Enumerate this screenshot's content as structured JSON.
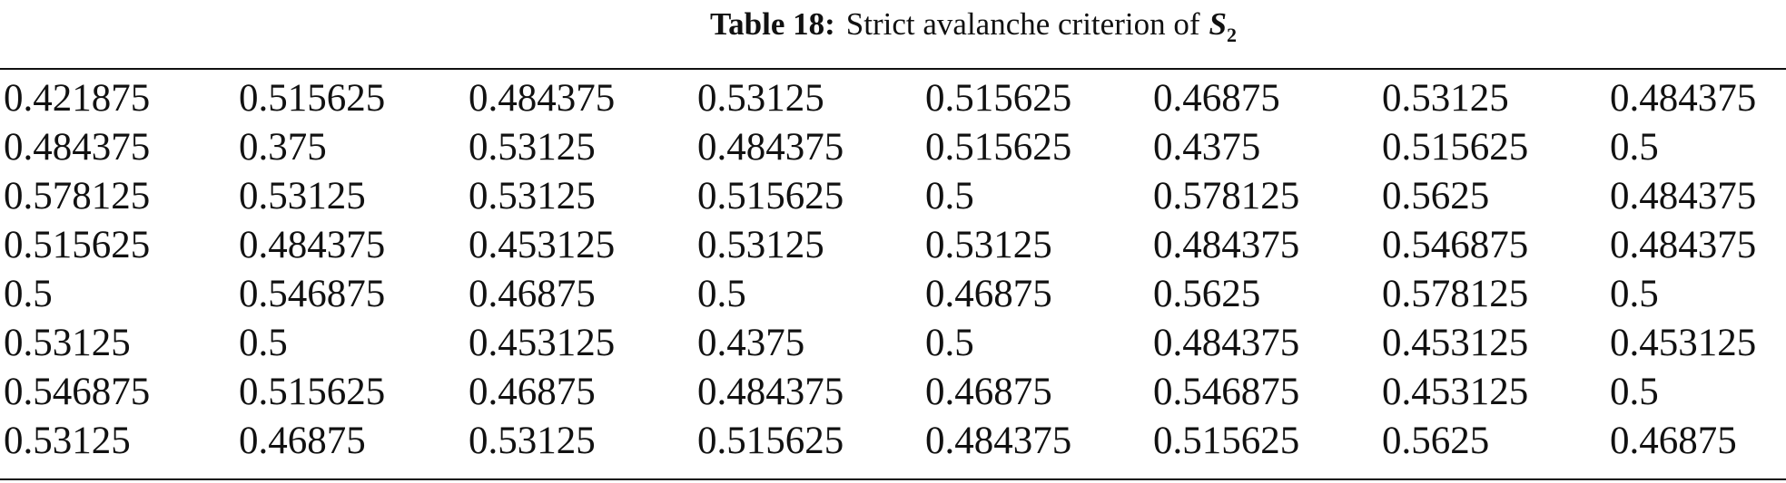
{
  "caption": {
    "label": "Table 18:",
    "text": "Strict avalanche criterion of",
    "symbol": "S",
    "subscript": 2
  },
  "table": {
    "rows": [
      [
        0.421875,
        0.515625,
        0.484375,
        0.53125,
        0.515625,
        0.46875,
        0.53125,
        0.484375
      ],
      [
        0.484375,
        0.375,
        0.53125,
        0.484375,
        0.515625,
        0.4375,
        0.515625,
        0.5
      ],
      [
        0.578125,
        0.53125,
        0.53125,
        0.515625,
        0.5,
        0.578125,
        0.5625,
        0.484375
      ],
      [
        0.515625,
        0.484375,
        0.453125,
        0.53125,
        0.53125,
        0.484375,
        0.546875,
        0.484375
      ],
      [
        0.5,
        0.546875,
        0.46875,
        0.5,
        0.46875,
        0.5625,
        0.578125,
        0.5
      ],
      [
        0.53125,
        0.5,
        0.453125,
        0.4375,
        0.5,
        0.484375,
        0.453125,
        0.453125
      ],
      [
        0.546875,
        0.515625,
        0.46875,
        0.484375,
        0.46875,
        0.546875,
        0.453125,
        0.5
      ],
      [
        0.53125,
        0.46875,
        0.53125,
        0.515625,
        0.484375,
        0.515625,
        0.5625,
        0.46875
      ]
    ]
  }
}
